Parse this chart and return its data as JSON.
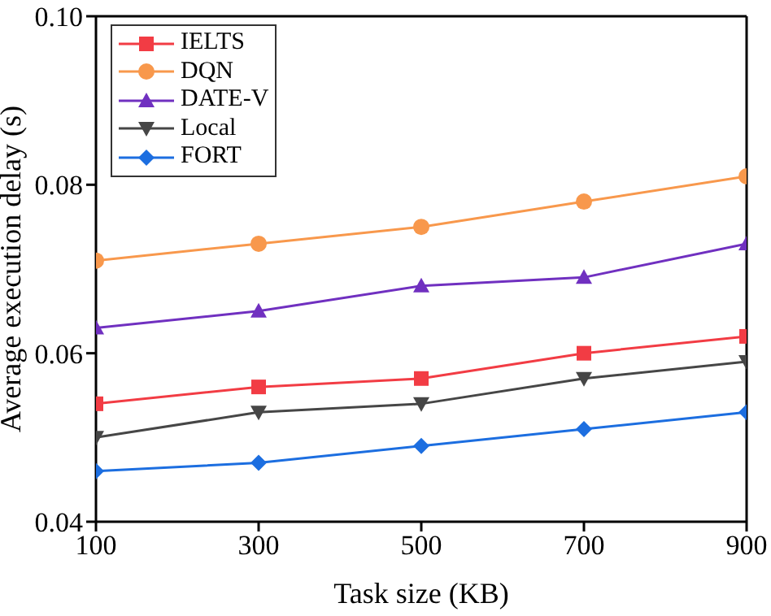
{
  "chart_data": {
    "type": "line",
    "xlabel": "Task size (KB)",
    "ylabel": "Average execution delay (s)",
    "x": [
      100,
      300,
      500,
      700,
      900
    ],
    "xlim": [
      100,
      900
    ],
    "xticks": [
      100,
      300,
      500,
      700,
      900
    ],
    "ylim": [
      0.04,
      0.1
    ],
    "yticks": [
      {
        "value": 0.04,
        "label": "0.04"
      },
      {
        "value": 0.06,
        "label": "0.06"
      },
      {
        "value": 0.08,
        "label": "0.08"
      },
      {
        "value": 0.1,
        "label": "0.10"
      }
    ],
    "grid": false,
    "legend": "top left",
    "line_style": "solid",
    "series": [
      {
        "name": "IELTS",
        "color": "#f23c44",
        "marker": "square",
        "values": [
          0.054,
          0.056,
          0.057,
          0.06,
          0.062
        ]
      },
      {
        "name": "DQN",
        "color": "#f8984c",
        "marker": "circle",
        "values": [
          0.071,
          0.073,
          0.075,
          0.078,
          0.081
        ]
      },
      {
        "name": "DATE-V",
        "color": "#7030c0",
        "marker": "triangle",
        "values": [
          0.063,
          0.065,
          0.068,
          0.069,
          0.073
        ]
      },
      {
        "name": "Local",
        "color": "#464646",
        "marker": "triangle-down",
        "values": [
          0.05,
          0.053,
          0.054,
          0.057,
          0.059
        ]
      },
      {
        "name": "FORT",
        "color": "#1c6ee0",
        "marker": "diamond",
        "values": [
          0.046,
          0.047,
          0.049,
          0.051,
          0.053
        ]
      }
    ]
  }
}
